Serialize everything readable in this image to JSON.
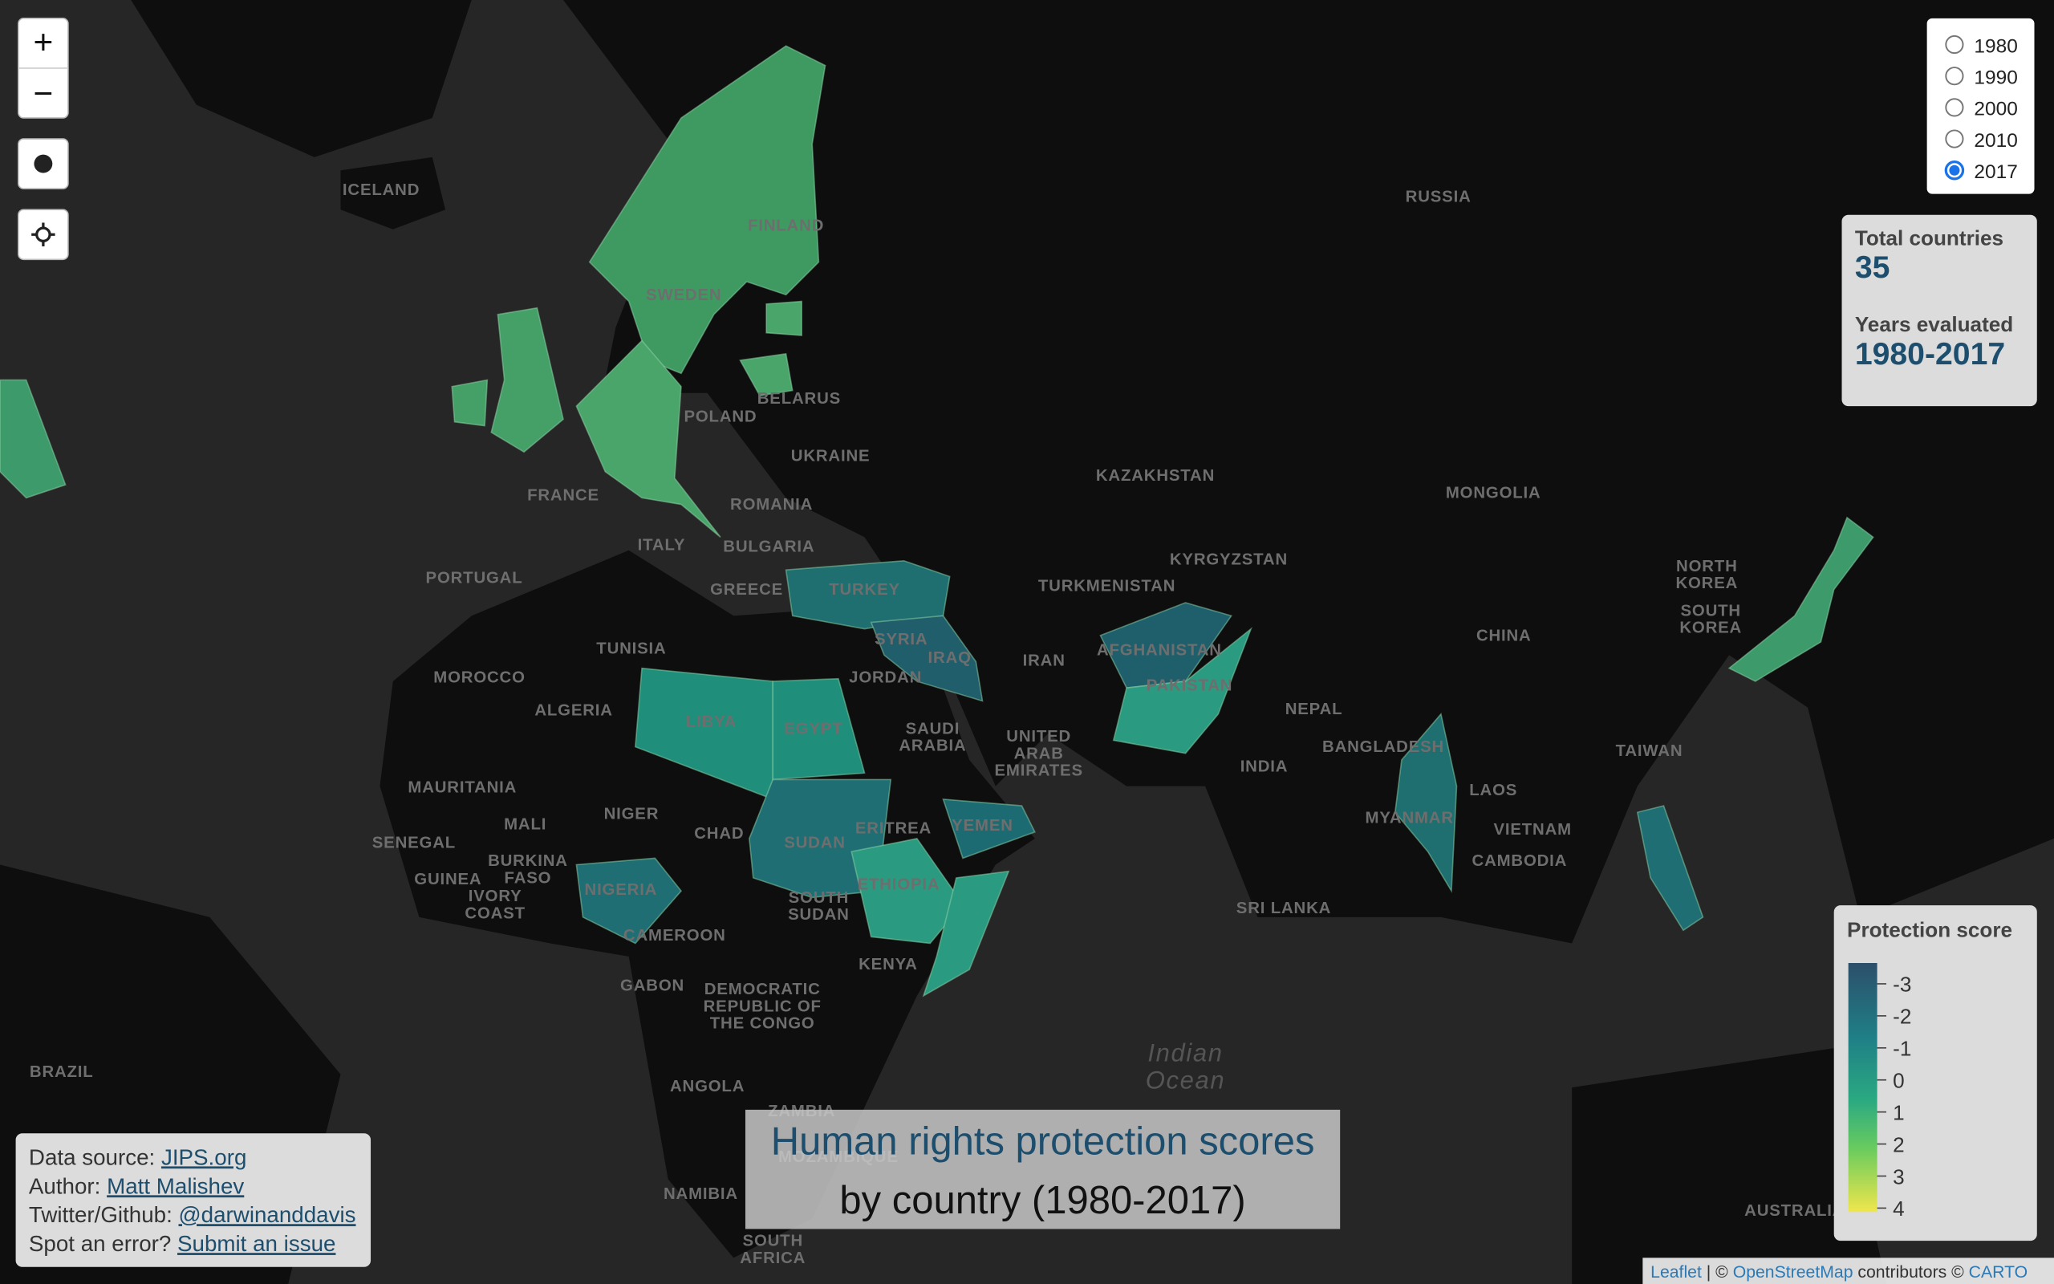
{
  "controls": {
    "zoom_in": "+",
    "zoom_out": "−"
  },
  "year_options": [
    1980,
    1990,
    2000,
    2010,
    2017
  ],
  "selected_year": 2017,
  "info": {
    "countries_label": "Total countries",
    "countries_value": 35,
    "years_label": "Years evaluated",
    "years_value": "1980-2017"
  },
  "legend": {
    "title": "Protection score",
    "ticks": [
      -3,
      -2,
      -1,
      0,
      1,
      2,
      3,
      4
    ],
    "lim": [
      -3.65,
      4.12
    ]
  },
  "title": {
    "line1": "Human rights protection scores",
    "line2": "by country (1980-2017)"
  },
  "credits": {
    "source_label": "Data source: ",
    "source_link": "JIPS.org",
    "author_label": "Author: ",
    "author_link": "Matt Malishev",
    "social_label": "Twitter/Github: ",
    "social_link": "@darwinanddavis",
    "error_label": "Spot an error? ",
    "error_link": "Submit an issue"
  },
  "attribution": {
    "leaflet": "Leaflet",
    "sep1": " | © ",
    "osm": "OpenStreetMap",
    "sep2": " contributors © ",
    "carto": "CARTO"
  },
  "map": {
    "labels": [
      [
        "ICELAND"
      ],
      [
        "RUSSIA"
      ],
      [
        "FINLAND"
      ],
      [
        "SWEDEN"
      ],
      [
        "POLAND"
      ],
      [
        "BELARUS"
      ],
      [
        "UKRAINE"
      ],
      [
        "KAZAKHSTAN"
      ],
      [
        "MONGOLIA"
      ],
      [
        "FRANCE"
      ],
      [
        "ROMANIA"
      ],
      [
        "ITALY"
      ],
      [
        "BULGARIA"
      ],
      [
        "PORTUGAL"
      ],
      [
        "GREECE"
      ],
      [
        "TURKEY"
      ],
      [
        "KYRGYZSTAN"
      ],
      [
        "TURKMENISTAN"
      ],
      [
        "NORTH",
        "KOREA"
      ],
      [
        "SOUTH",
        "KOREA"
      ],
      [
        "CHINA"
      ],
      [
        "TUNISIA"
      ],
      [
        "SYRIA"
      ],
      [
        "IRAQ"
      ],
      [
        "IRAN"
      ],
      [
        "AFGHANISTAN"
      ],
      [
        "PAKISTAN"
      ],
      [
        "MOROCCO"
      ],
      [
        "JORDAN"
      ],
      [
        "ALGERIA"
      ],
      [
        "LIBYA"
      ],
      [
        "EGYPT"
      ],
      [
        "SAUDI",
        "ARABIA"
      ],
      [
        "UNITED",
        "ARAB",
        "EMIRATES"
      ],
      [
        "NEPAL"
      ],
      [
        "BANGLADESH"
      ],
      [
        "TAIWAN"
      ],
      [
        "INDIA"
      ],
      [
        "MAURITANIA"
      ],
      [
        "NIGER"
      ],
      [
        "CHAD"
      ],
      [
        "SUDAN"
      ],
      [
        "ERITREA"
      ],
      [
        "YEMEN"
      ],
      [
        "MALI"
      ],
      [
        "LAOS"
      ],
      [
        "MYANMAR"
      ],
      [
        "VIETNAM"
      ],
      [
        "SENEGAL"
      ],
      [
        "BURKINA",
        "FASO"
      ],
      [
        "GUINEA"
      ],
      [
        "CAMBODIA"
      ],
      [
        "IVORY",
        "COAST"
      ],
      [
        "NIGERIA"
      ],
      [
        "SOUTH",
        "SUDAN"
      ],
      [
        "ETHIOPIA"
      ],
      [
        "SRI LANKA"
      ],
      [
        "CAMEROON"
      ],
      [
        "KENYA"
      ],
      [
        "GABON"
      ],
      [
        "DEMOCRATIC",
        "REPUBLIC OF",
        "THE CONGO"
      ],
      [
        "Indian",
        "Ocean"
      ],
      [
        "BRAZIL"
      ],
      [
        "ANGOLA"
      ],
      [
        "ZAMBIA"
      ],
      [
        "MOZAMBIQUE"
      ],
      [
        "NAMIBIA"
      ],
      [
        "SOUTH",
        "AFRICA"
      ],
      [
        "AUSTRALIA"
      ]
    ]
  }
}
